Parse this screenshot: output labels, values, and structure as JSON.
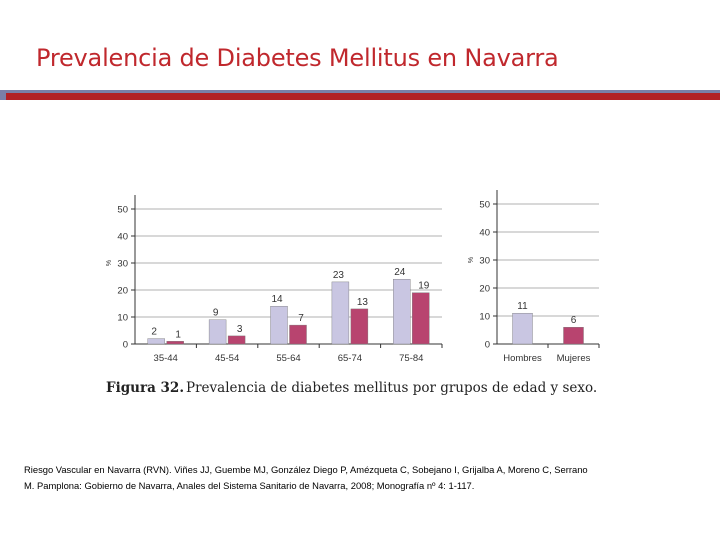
{
  "slide": {
    "title": "Prevalencia de Diabetes Mellitus en Navarra",
    "reference_line1": "Riesgo Vascular en Navarra (RVN). Viñes JJ, Guembe MJ, González Diego P, Amézqueta C, Sobejano I, Grijalba A, Moreno C, Serrano",
    "reference_line2": "M. Pamplona: Gobierno de Navarra, Anales del Sistema Sanitario de Navarra, 2008; Monografía nº 4: 1-117."
  },
  "figure": {
    "caption_label": "Figura 32.",
    "caption_text": "Prevalencia de diabetes mellitus por grupos de edad y sexo."
  },
  "colors": {
    "hombres": "#c9c6e2",
    "mujeres": "#b8446f",
    "axis": "#333333",
    "title": "#c0282d",
    "band": "#b22126"
  },
  "chart_data": [
    {
      "type": "bar",
      "categories": [
        "35-44",
        "45-54",
        "55-64",
        "65-74",
        "75-84"
      ],
      "series": [
        {
          "values": [
            2,
            9,
            14,
            23,
            24
          ]
        },
        {
          "values": [
            1,
            3,
            7,
            13,
            19
          ]
        }
      ],
      "ylabel": "%",
      "ylim": [
        0,
        50
      ],
      "yticks": [
        "0",
        "10",
        "20",
        "30",
        "40",
        "50"
      ],
      "grid": true
    },
    {
      "type": "bar",
      "categories": [
        "Hombres",
        "Mujeres"
      ],
      "series": [
        {
          "values": [
            11,
            6
          ]
        }
      ],
      "ylabel": "%",
      "ylim": [
        0,
        50
      ],
      "yticks": [
        "0",
        "10",
        "20",
        "30",
        "40",
        "50"
      ],
      "grid": true
    }
  ]
}
